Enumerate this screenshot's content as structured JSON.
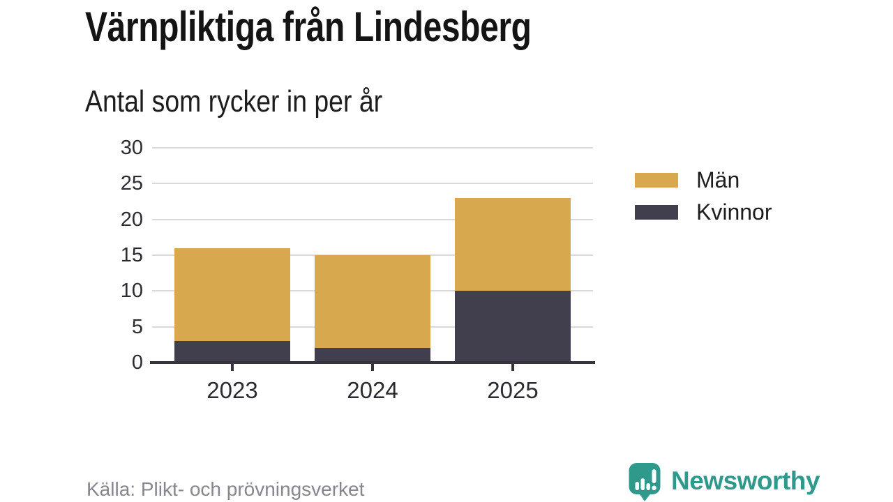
{
  "header": {
    "title": "Värnpliktiga från Lindesberg",
    "subtitle": "Antal som rycker in per år"
  },
  "footer": {
    "source": "Källa: Plikt- och prövningsverket",
    "brand_name": "Newsworthy"
  },
  "colors": {
    "men": "#d8a84f",
    "women": "#413e4e",
    "brand_teal": "#2f9a8c",
    "gridline": "#d9d9d9",
    "axis": "#37343e"
  },
  "chart_data": {
    "type": "bar",
    "stacked": true,
    "title": "Värnpliktiga från Lindesberg",
    "subtitle": "Antal som rycker in per år",
    "categories": [
      "2023",
      "2024",
      "2025"
    ],
    "series": [
      {
        "name": "Män",
        "color": "#d8a84f",
        "values": [
          13,
          13,
          13
        ]
      },
      {
        "name": "Kvinnor",
        "color": "#413e4e",
        "values": [
          3,
          2,
          10
        ]
      }
    ],
    "stack_bottom_to_top": [
      "Kvinnor",
      "Män"
    ],
    "totals": [
      16,
      15,
      23
    ],
    "xlabel": "",
    "ylabel": "",
    "ylim": [
      0,
      30
    ],
    "yticks": [
      0,
      5,
      10,
      15,
      20,
      25,
      30
    ],
    "grid": true,
    "legend_position": "right",
    "legend_order": [
      "Män",
      "Kvinnor"
    ]
  }
}
